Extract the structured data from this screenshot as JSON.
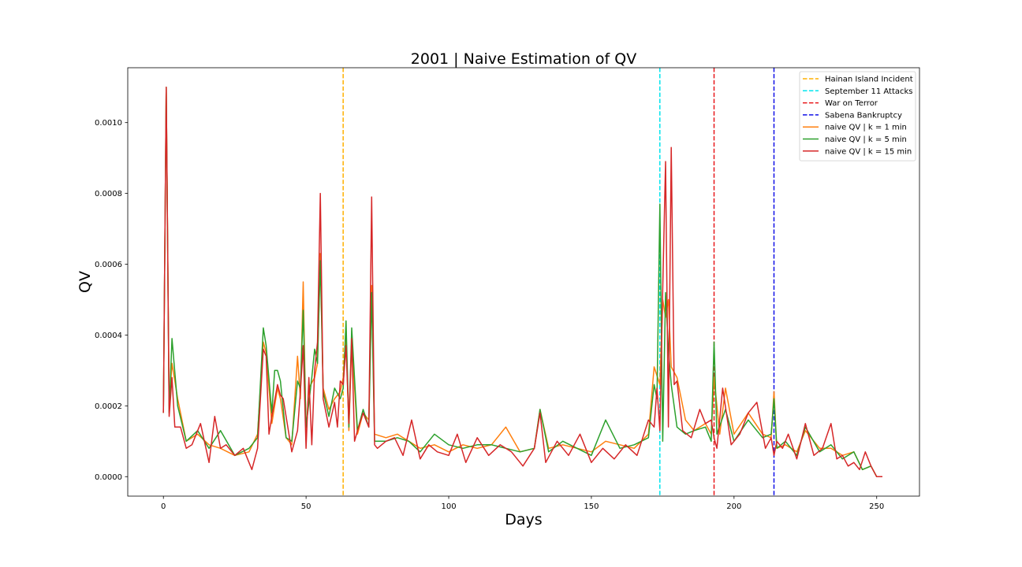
{
  "chart_data": {
    "type": "line",
    "title": "2001 | Naive Estimation of QV",
    "xlabel": "Days",
    "ylabel": "QV",
    "xlim": [
      -12.5,
      265
    ],
    "ylim": [
      -5.5e-05,
      0.001155
    ],
    "x_ticks": [
      0,
      50,
      100,
      150,
      200,
      250
    ],
    "x_tick_labels": [
      "0",
      "50",
      "100",
      "150",
      "200",
      "250"
    ],
    "y_ticks": [
      0.0,
      0.0002,
      0.0004,
      0.0006,
      0.0008,
      0.001
    ],
    "y_tick_labels": [
      "0.0000",
      "0.0002",
      "0.0004",
      "0.0006",
      "0.0008",
      "0.0010"
    ],
    "grid": false,
    "legend_position": "top-right",
    "events": [
      {
        "name": "Hainan Island Incident",
        "x": 63,
        "color": "#ffb000"
      },
      {
        "name": "September 11 Attacks",
        "x": 174,
        "color": "#00e5ee"
      },
      {
        "name": "War on Terror",
        "x": 193,
        "color": "#e8171a"
      },
      {
        "name": "Sabena Bankruptcy",
        "x": 214,
        "color": "#1010e8"
      }
    ],
    "series": [
      {
        "name": "naive QV | k = 1 min",
        "color": "#ff7f0e",
        "x": [
          0,
          1,
          2,
          3,
          5,
          8,
          12,
          16,
          20,
          25,
          30,
          33,
          35,
          36,
          38,
          40,
          41,
          43,
          45,
          47,
          48,
          49,
          50,
          51,
          53,
          54,
          55,
          56,
          58,
          60,
          62,
          63,
          64,
          65,
          66,
          68,
          70,
          72,
          73,
          74,
          78,
          82,
          86,
          90,
          95,
          100,
          105,
          110,
          115,
          120,
          125,
          130,
          132,
          135,
          140,
          145,
          150,
          155,
          160,
          165,
          170,
          172,
          174,
          175,
          176,
          177,
          178,
          180,
          183,
          186,
          190,
          192,
          193,
          195,
          197,
          200,
          205,
          210,
          213,
          214,
          215,
          218,
          222,
          225,
          230,
          234,
          238,
          242,
          245,
          248,
          250,
          252
        ],
        "values": [
          0.00018,
          0.0011,
          0.0002,
          0.00032,
          0.00022,
          0.0001,
          0.00012,
          9e-05,
          8e-05,
          6e-05,
          7e-05,
          0.00012,
          0.00038,
          0.00035,
          0.00015,
          0.00025,
          0.00022,
          0.00011,
          9e-05,
          0.00034,
          0.00022,
          0.00055,
          0.00012,
          0.00025,
          0.00028,
          0.00032,
          0.00063,
          0.00025,
          0.00019,
          0.00022,
          0.00024,
          0.00028,
          0.00041,
          0.00013,
          0.00038,
          0.00012,
          0.00018,
          0.00016,
          0.00054,
          0.00012,
          0.00011,
          0.00012,
          0.0001,
          8e-05,
          9e-05,
          7e-05,
          9e-05,
          8e-05,
          9e-05,
          0.00014,
          7e-05,
          8e-05,
          0.00019,
          8e-05,
          9e-05,
          8e-05,
          7e-05,
          0.0001,
          9e-05,
          8e-05,
          0.00012,
          0.00031,
          0.00026,
          0.0005,
          0.00045,
          0.0005,
          0.00031,
          0.00028,
          0.00016,
          0.00013,
          0.00015,
          0.00012,
          0.00028,
          0.00012,
          0.00025,
          0.00012,
          0.00018,
          0.00012,
          0.00011,
          0.00024,
          8e-05,
          9e-05,
          7e-05,
          0.00013,
          8e-05,
          8e-05,
          6e-05,
          7e-05,
          2e-05,
          3e-05,
          0.0,
          0.0
        ]
      },
      {
        "name": "naive QV | k = 5 min",
        "color": "#2ca02c",
        "x": [
          0,
          1,
          2,
          3,
          5,
          8,
          12,
          16,
          20,
          25,
          30,
          33,
          35,
          36,
          38,
          39,
          40,
          41,
          43,
          45,
          47,
          48,
          49,
          50,
          52,
          53,
          54,
          55,
          56,
          58,
          60,
          62,
          63,
          64,
          65,
          66,
          68,
          70,
          72,
          73,
          74,
          78,
          82,
          86,
          90,
          95,
          100,
          105,
          110,
          115,
          120,
          125,
          130,
          132,
          135,
          140,
          145,
          150,
          155,
          160,
          165,
          170,
          172,
          173,
          174,
          175,
          176,
          177,
          178,
          180,
          183,
          186,
          190,
          192,
          193,
          194,
          197,
          200,
          205,
          210,
          213,
          214,
          215,
          218,
          222,
          225,
          230,
          234,
          238,
          242,
          245,
          248,
          250,
          252
        ],
        "values": [
          0.00018,
          0.0011,
          0.00018,
          0.00039,
          0.0002,
          0.0001,
          0.00013,
          8e-05,
          0.00013,
          6e-05,
          8e-05,
          0.00011,
          0.00042,
          0.00037,
          0.00018,
          0.0003,
          0.0003,
          0.00027,
          0.00011,
          0.0001,
          0.00027,
          0.00025,
          0.00047,
          0.00014,
          0.00028,
          0.00036,
          0.00032,
          0.00061,
          0.00024,
          0.00017,
          0.00025,
          0.00022,
          0.00025,
          0.00044,
          0.00014,
          0.00042,
          0.00013,
          0.00019,
          0.00014,
          0.00052,
          0.0001,
          0.0001,
          0.00011,
          0.0001,
          7e-05,
          0.00012,
          9e-05,
          8e-05,
          9e-05,
          9e-05,
          8e-05,
          7e-05,
          8e-05,
          0.00019,
          7e-05,
          0.0001,
          8e-05,
          6e-05,
          0.00016,
          8e-05,
          9e-05,
          0.00011,
          0.00026,
          0.00022,
          0.00077,
          0.0001,
          0.00052,
          0.00036,
          0.00026,
          0.00014,
          0.00012,
          0.00013,
          0.00014,
          0.0001,
          0.00038,
          0.00012,
          0.00019,
          0.0001,
          0.00016,
          0.00011,
          0.00012,
          0.00022,
          8e-05,
          0.0001,
          6e-05,
          0.00014,
          7e-05,
          9e-05,
          5e-05,
          7e-05,
          2e-05,
          3e-05,
          0.0,
          0.0
        ]
      },
      {
        "name": "naive QV | k = 15 min",
        "color": "#d62728",
        "x": [
          0,
          1,
          2,
          3,
          4,
          6,
          8,
          10,
          13,
          16,
          18,
          20,
          22,
          25,
          28,
          31,
          33,
          35,
          36,
          37,
          38,
          40,
          41,
          42,
          45,
          47,
          48,
          49,
          50,
          51,
          52,
          53,
          54,
          55,
          56,
          58,
          60,
          61,
          62,
          63,
          64,
          65,
          66,
          67,
          68,
          70,
          71,
          72,
          73,
          74,
          75,
          78,
          81,
          84,
          87,
          90,
          93,
          96,
          100,
          103,
          106,
          110,
          114,
          118,
          122,
          126,
          130,
          132,
          134,
          138,
          142,
          146,
          150,
          154,
          158,
          162,
          166,
          170,
          172,
          173,
          174,
          175,
          176,
          177,
          178,
          179,
          180,
          182,
          185,
          188,
          190,
          192,
          193,
          194,
          196,
          199,
          202,
          205,
          208,
          211,
          213,
          214,
          215,
          217,
          219,
          222,
          225,
          228,
          231,
          234,
          236,
          238,
          240,
          242,
          244,
          246,
          248,
          250,
          252
        ],
        "values": [
          0.00018,
          0.0011,
          0.00017,
          0.00028,
          0.00014,
          0.00014,
          8e-05,
          9e-05,
          0.00015,
          4e-05,
          0.00017,
          8e-05,
          9e-05,
          6e-05,
          8e-05,
          2e-05,
          8e-05,
          0.00036,
          0.00034,
          0.00012,
          0.00017,
          0.00026,
          0.00023,
          0.00022,
          7e-05,
          0.00013,
          0.00024,
          0.00037,
          8e-05,
          0.00028,
          9e-05,
          0.0003,
          0.00038,
          0.0008,
          0.00022,
          0.00014,
          0.00021,
          0.00014,
          0.00027,
          0.00026,
          0.00037,
          0.00015,
          0.00039,
          0.0001,
          0.00013,
          0.00018,
          0.00016,
          0.00014,
          0.00079,
          9e-05,
          8e-05,
          0.0001,
          0.00011,
          6e-05,
          0.00016,
          5e-05,
          9e-05,
          7e-05,
          6e-05,
          0.00012,
          4e-05,
          0.00011,
          6e-05,
          9e-05,
          7e-05,
          3e-05,
          8e-05,
          0.00018,
          4e-05,
          0.0001,
          6e-05,
          0.00012,
          4e-05,
          8e-05,
          5e-05,
          9e-05,
          6e-05,
          0.00016,
          0.00014,
          0.00025,
          0.00013,
          0.00053,
          0.00089,
          0.00014,
          0.00093,
          0.00026,
          0.00027,
          0.00013,
          0.00011,
          0.00019,
          0.00015,
          0.00016,
          0.00011,
          8e-05,
          0.00025,
          9e-05,
          0.00012,
          0.00018,
          0.00021,
          8e-05,
          0.00011,
          6e-05,
          0.0001,
          8e-05,
          0.00012,
          5e-05,
          0.00015,
          6e-05,
          8e-05,
          0.00015,
          5e-05,
          6e-05,
          3e-05,
          4e-05,
          2e-05,
          7e-05,
          3e-05,
          0.0,
          0.0
        ]
      }
    ]
  }
}
